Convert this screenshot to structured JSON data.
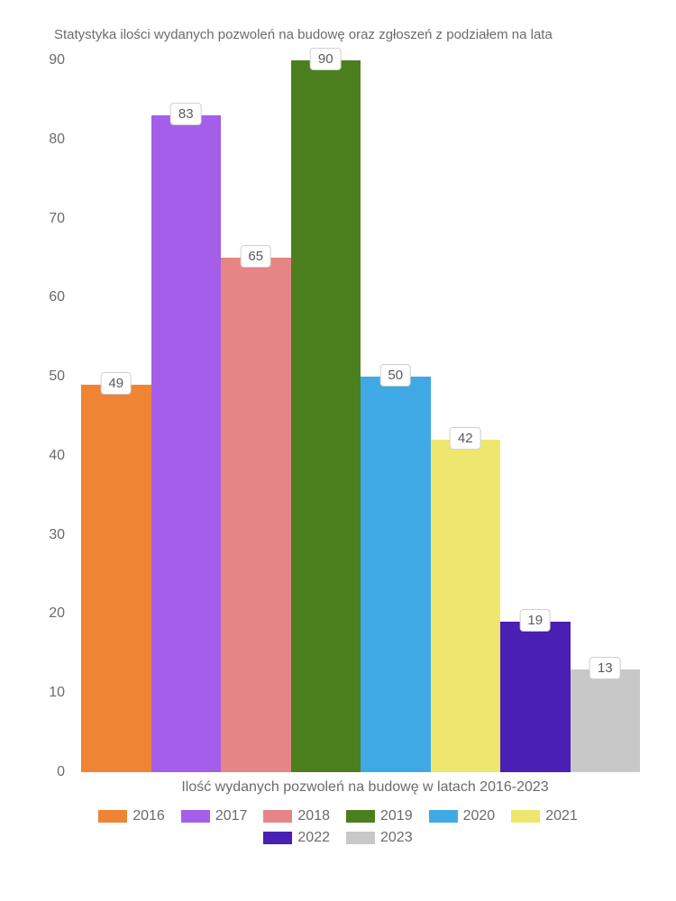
{
  "chart": {
    "type": "bar",
    "title": "Statystyka ilości wydanych pozwoleń na budowę oraz zgłoszeń z podziałem na lata",
    "title_fontsize": 15,
    "title_color": "#6b6b6b",
    "xlabel": "Ilość wydanych pozwoleń na budowę w latach 2016-2023",
    "label_fontsize": 16,
    "label_color": "#6b6b6b",
    "ylim": [
      0,
      90
    ],
    "yticks": [
      0,
      10,
      20,
      30,
      40,
      50,
      60,
      70,
      80,
      90
    ],
    "tick_fontsize": 16,
    "tick_color": "#6b6b6b",
    "background_color": "#ffffff",
    "bar_width": 1.0,
    "value_label_bg": "#ffffff",
    "value_label_border": "#d0d0d0",
    "value_label_fontsize": 15,
    "series": [
      {
        "year": "2016",
        "value": 49,
        "color": "#ee8434"
      },
      {
        "year": "2017",
        "value": 83,
        "color": "#a45ee9"
      },
      {
        "year": "2018",
        "value": 65,
        "color": "#e58585"
      },
      {
        "year": "2019",
        "value": 90,
        "color": "#4b7f1e"
      },
      {
        "year": "2020",
        "value": 50,
        "color": "#3fa9e5"
      },
      {
        "year": "2021",
        "value": 42,
        "color": "#eee76e"
      },
      {
        "year": "2022",
        "value": 19,
        "color": "#4a1fb3"
      },
      {
        "year": "2023",
        "value": 13,
        "color": "#c8c8c8"
      }
    ]
  }
}
